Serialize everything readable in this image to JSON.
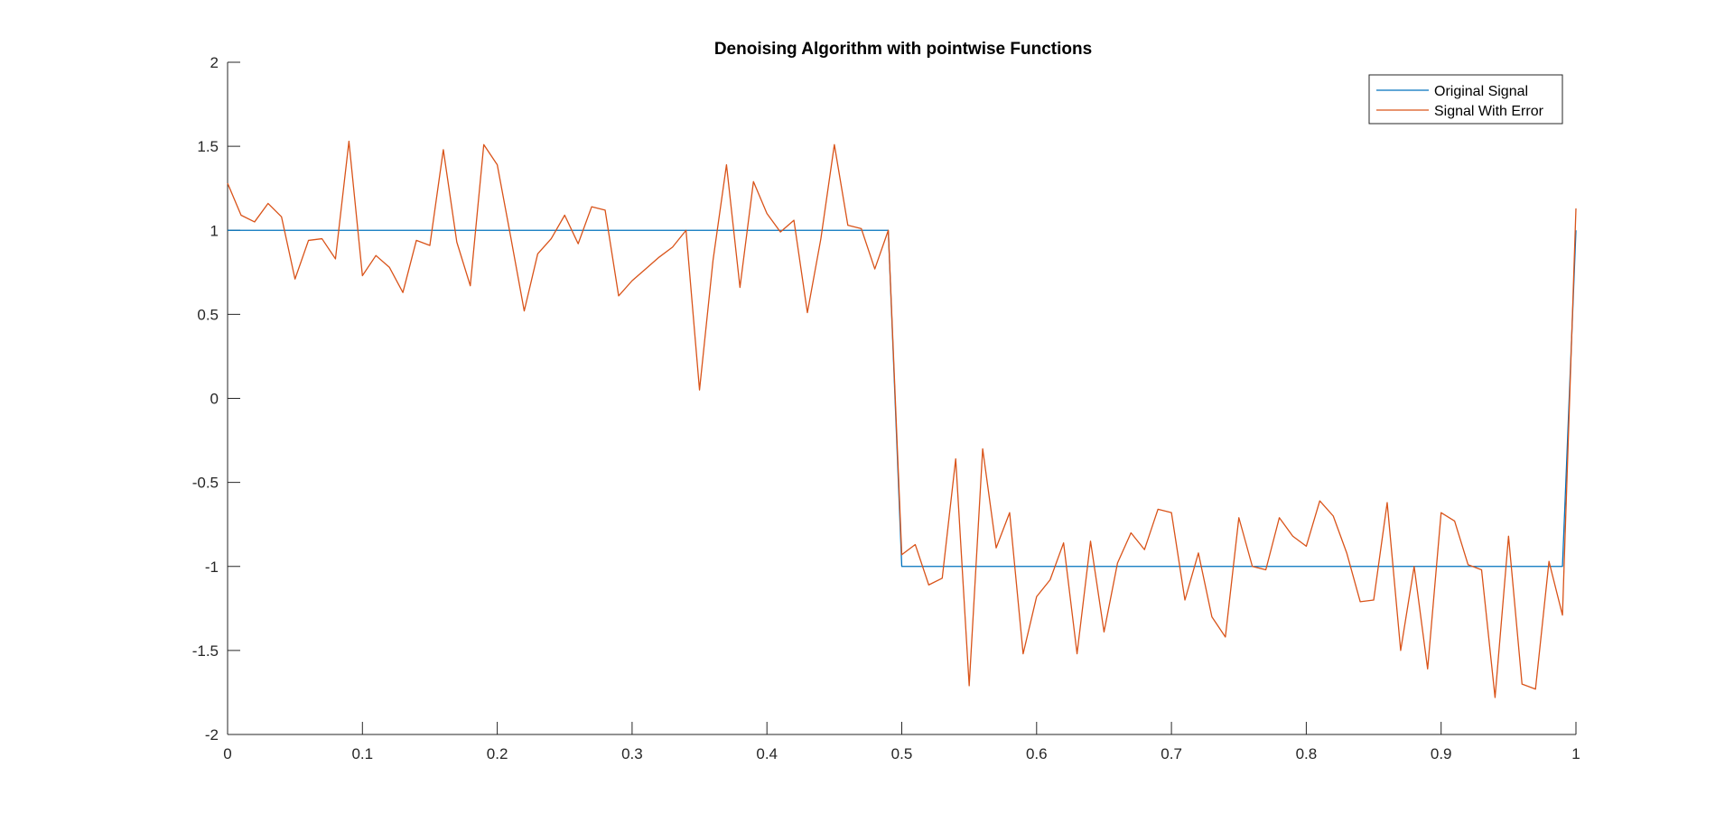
{
  "chart_data": {
    "type": "line",
    "title": "Denoising Algorithm with pointwise Functions",
    "xlabel": "",
    "ylabel": "",
    "xlim": [
      0,
      1
    ],
    "ylim": [
      -2,
      2
    ],
    "xticks": [
      "0",
      "0.1",
      "0.2",
      "0.3",
      "0.4",
      "0.5",
      "0.6",
      "0.7",
      "0.8",
      "0.9",
      "1"
    ],
    "yticks": [
      "2",
      "1.5",
      "1",
      "0.5",
      "0",
      "-0.5",
      "-1",
      "-1.5",
      "-2"
    ],
    "grid": false,
    "legend_position": "top-right",
    "series": [
      {
        "name": "Original Signal",
        "color": "#0072BD",
        "x": [
          0,
          0.49,
          0.5,
          0.99,
          1
        ],
        "y": [
          1,
          1,
          -1,
          -1,
          1
        ]
      },
      {
        "name": "Signal With Error",
        "color": "#D95319",
        "x": [
          0,
          0.01,
          0.02,
          0.03,
          0.04,
          0.05,
          0.06,
          0.07,
          0.08,
          0.09,
          0.1,
          0.11,
          0.12,
          0.13,
          0.14,
          0.15,
          0.16,
          0.17,
          0.18,
          0.19,
          0.2,
          0.21,
          0.22,
          0.23,
          0.24,
          0.25,
          0.26,
          0.27,
          0.28,
          0.29,
          0.3,
          0.31,
          0.32,
          0.33,
          0.34,
          0.35,
          0.36,
          0.37,
          0.38,
          0.39,
          0.4,
          0.41,
          0.42,
          0.43,
          0.44,
          0.45,
          0.46,
          0.47,
          0.48,
          0.49,
          0.5,
          0.51,
          0.52,
          0.53,
          0.54,
          0.55,
          0.56,
          0.57,
          0.58,
          0.59,
          0.6,
          0.61,
          0.62,
          0.63,
          0.64,
          0.65,
          0.66,
          0.67,
          0.68,
          0.69,
          0.7,
          0.71,
          0.72,
          0.73,
          0.74,
          0.75,
          0.76,
          0.77,
          0.78,
          0.79,
          0.8,
          0.81,
          0.82,
          0.83,
          0.84,
          0.85,
          0.86,
          0.87,
          0.88,
          0.89,
          0.9,
          0.91,
          0.92,
          0.93,
          0.94,
          0.95,
          0.96,
          0.97,
          0.98,
          0.99,
          1
        ],
        "y": [
          1.28,
          1.09,
          1.05,
          1.16,
          1.08,
          0.71,
          0.94,
          0.95,
          0.83,
          1.53,
          0.73,
          0.85,
          0.78,
          0.63,
          0.94,
          0.91,
          1.48,
          0.93,
          0.67,
          1.51,
          1.39,
          0.96,
          0.52,
          0.86,
          0.95,
          1.09,
          0.92,
          1.14,
          1.12,
          0.61,
          0.7,
          0.77,
          0.84,
          0.9,
          1.0,
          0.05,
          0.82,
          1.39,
          0.66,
          1.29,
          1.1,
          0.99,
          1.06,
          0.51,
          0.95,
          1.51,
          1.03,
          1.01,
          0.77,
          1.0,
          -0.93,
          -0.87,
          -1.11,
          -1.07,
          -0.36,
          -1.71,
          -0.3,
          -0.89,
          -0.68,
          -1.52,
          -1.18,
          -1.08,
          -0.86,
          -1.52,
          -0.85,
          -1.39,
          -0.98,
          -0.8,
          -0.9,
          -0.66,
          -0.68,
          -1.2,
          -0.92,
          -1.3,
          -1.42,
          -0.71,
          -1.0,
          -1.02,
          -0.71,
          -0.82,
          -0.88,
          -0.61,
          -0.7,
          -0.92,
          -1.21,
          -1.2,
          -0.62,
          -1.5,
          -1.0,
          -1.61,
          -0.68,
          -0.73,
          -0.99,
          -1.02,
          -1.78,
          -0.82,
          -1.7,
          -1.73,
          -0.97,
          -1.29,
          1.13
        ]
      }
    ]
  }
}
